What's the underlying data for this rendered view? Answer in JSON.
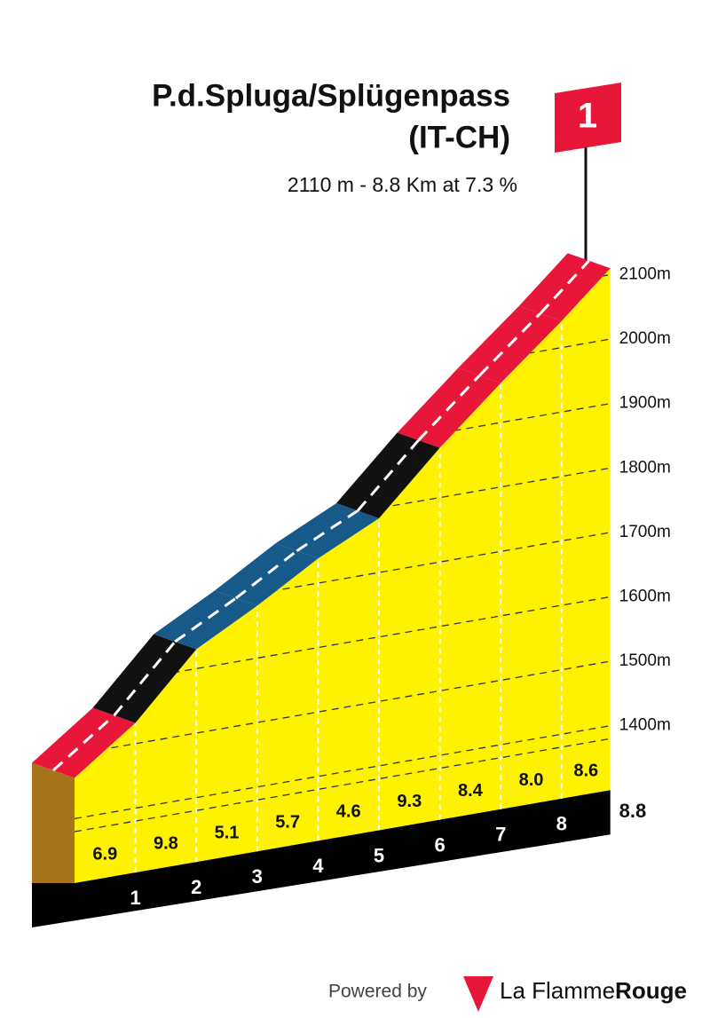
{
  "chart_data": {
    "type": "climb-profile",
    "title": "P.d.Spluga/Splügenpass",
    "subtitle": "(IT-CH)",
    "stats": "2110 m - 8.8 Km at 7.3 %",
    "category": "1",
    "km_ticks": [
      1,
      2,
      3,
      4,
      5,
      6,
      7,
      8,
      8.8
    ],
    "gradients": [
      6.9,
      9.8,
      5.1,
      5.7,
      4.6,
      9.3,
      8.4,
      8.0,
      8.6
    ],
    "value_labels": [
      "6.9",
      "9.8",
      "5.1",
      "5.7",
      "4.6",
      "9.3",
      "8.4",
      "8.0",
      "8.6"
    ],
    "segment_colors": [
      "#e8173a",
      "#111111",
      "#175a8a",
      "#175a8a",
      "#175a8a",
      "#111111",
      "#e8173a",
      "#e8173a",
      "#e8173a"
    ],
    "ylim": [
      1300,
      2110
    ],
    "yticks": [
      {
        "value": 1400,
        "label": "1400m"
      },
      {
        "value": 1500,
        "label": "1500m"
      },
      {
        "value": 1600,
        "label": "1600m"
      },
      {
        "value": 1700,
        "label": "1700m"
      },
      {
        "value": 1800,
        "label": "1800m"
      },
      {
        "value": 1900,
        "label": "1900m"
      },
      {
        "value": 2000,
        "label": "2000m"
      },
      {
        "value": 2100,
        "label": "2100m"
      }
    ],
    "grid": true,
    "footer": {
      "powered": "Powered by",
      "brand_light": "La Flamme",
      "brand_bold": "Rouge"
    }
  }
}
